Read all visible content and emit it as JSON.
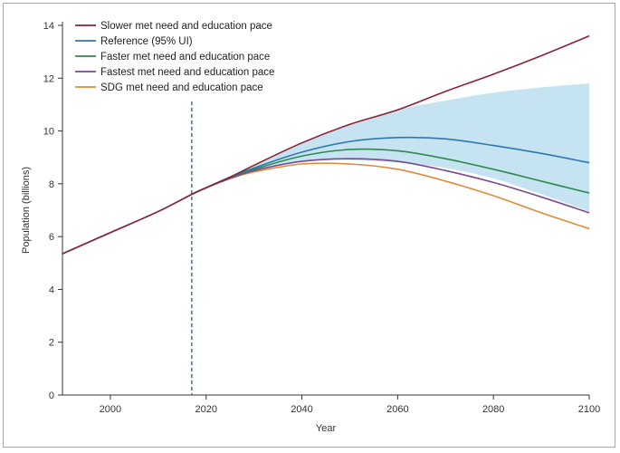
{
  "chart_data": {
    "type": "line",
    "title": "",
    "xlabel": "Year",
    "ylabel": "Population (billions)",
    "xlim": [
      1990,
      2100
    ],
    "ylim": [
      0,
      14
    ],
    "x_ticks": [
      2000,
      2020,
      2040,
      2060,
      2080,
      2100
    ],
    "y_ticks": [
      0,
      2,
      4,
      6,
      8,
      10,
      12,
      14
    ],
    "grid": false,
    "legend_position": "top-left",
    "reference_line": {
      "x": 2017,
      "style": "dashed",
      "color": "#2a6ca8"
    },
    "band": {
      "name": "Reference 95% UI",
      "color": "#c6e3f2",
      "x": [
        2017,
        2025,
        2030,
        2040,
        2050,
        2060,
        2070,
        2080,
        2090,
        2100
      ],
      "upper": [
        7.6,
        8.3,
        8.7,
        9.55,
        10.25,
        10.8,
        11.15,
        11.45,
        11.65,
        11.8
      ],
      "lower": [
        7.6,
        8.25,
        8.5,
        8.85,
        8.9,
        8.8,
        8.6,
        8.2,
        7.6,
        6.95
      ]
    },
    "series": [
      {
        "name": "Slower met need and education pace",
        "color": "#8b2232",
        "x": [
          1990,
          2000,
          2010,
          2017,
          2020,
          2025,
          2030,
          2040,
          2050,
          2060,
          2070,
          2080,
          2090,
          2100
        ],
        "values": [
          5.35,
          6.15,
          6.95,
          7.6,
          7.85,
          8.25,
          8.7,
          9.55,
          10.25,
          10.8,
          11.5,
          12.15,
          12.85,
          13.6
        ]
      },
      {
        "name": "Reference (95% UI)",
        "color": "#2f77b1",
        "x": [
          1990,
          2000,
          2010,
          2017,
          2020,
          2025,
          2030,
          2040,
          2050,
          2060,
          2070,
          2080,
          2090,
          2100
        ],
        "values": [
          5.35,
          6.15,
          6.95,
          7.6,
          7.85,
          8.25,
          8.6,
          9.2,
          9.6,
          9.75,
          9.7,
          9.45,
          9.15,
          8.8
        ]
      },
      {
        "name": "Faster met need and education pace",
        "color": "#2e8a4c",
        "x": [
          2017,
          2020,
          2025,
          2030,
          2040,
          2050,
          2060,
          2070,
          2080,
          2090,
          2100
        ],
        "values": [
          7.6,
          7.85,
          8.25,
          8.55,
          9.05,
          9.3,
          9.25,
          8.95,
          8.55,
          8.1,
          7.65
        ]
      },
      {
        "name": "Fastest met need and education pace",
        "color": "#7a4a8e",
        "x": [
          2017,
          2020,
          2025,
          2030,
          2040,
          2050,
          2060,
          2070,
          2080,
          2090,
          2100
        ],
        "values": [
          7.6,
          7.85,
          8.2,
          8.5,
          8.85,
          8.95,
          8.85,
          8.5,
          8.05,
          7.5,
          6.9
        ]
      },
      {
        "name": "SDG met need and education pace",
        "color": "#e08a36",
        "x": [
          2017,
          2020,
          2025,
          2030,
          2040,
          2050,
          2060,
          2070,
          2080,
          2090,
          2100
        ],
        "values": [
          7.6,
          7.85,
          8.2,
          8.45,
          8.75,
          8.75,
          8.55,
          8.1,
          7.55,
          6.9,
          6.3
        ]
      }
    ]
  }
}
